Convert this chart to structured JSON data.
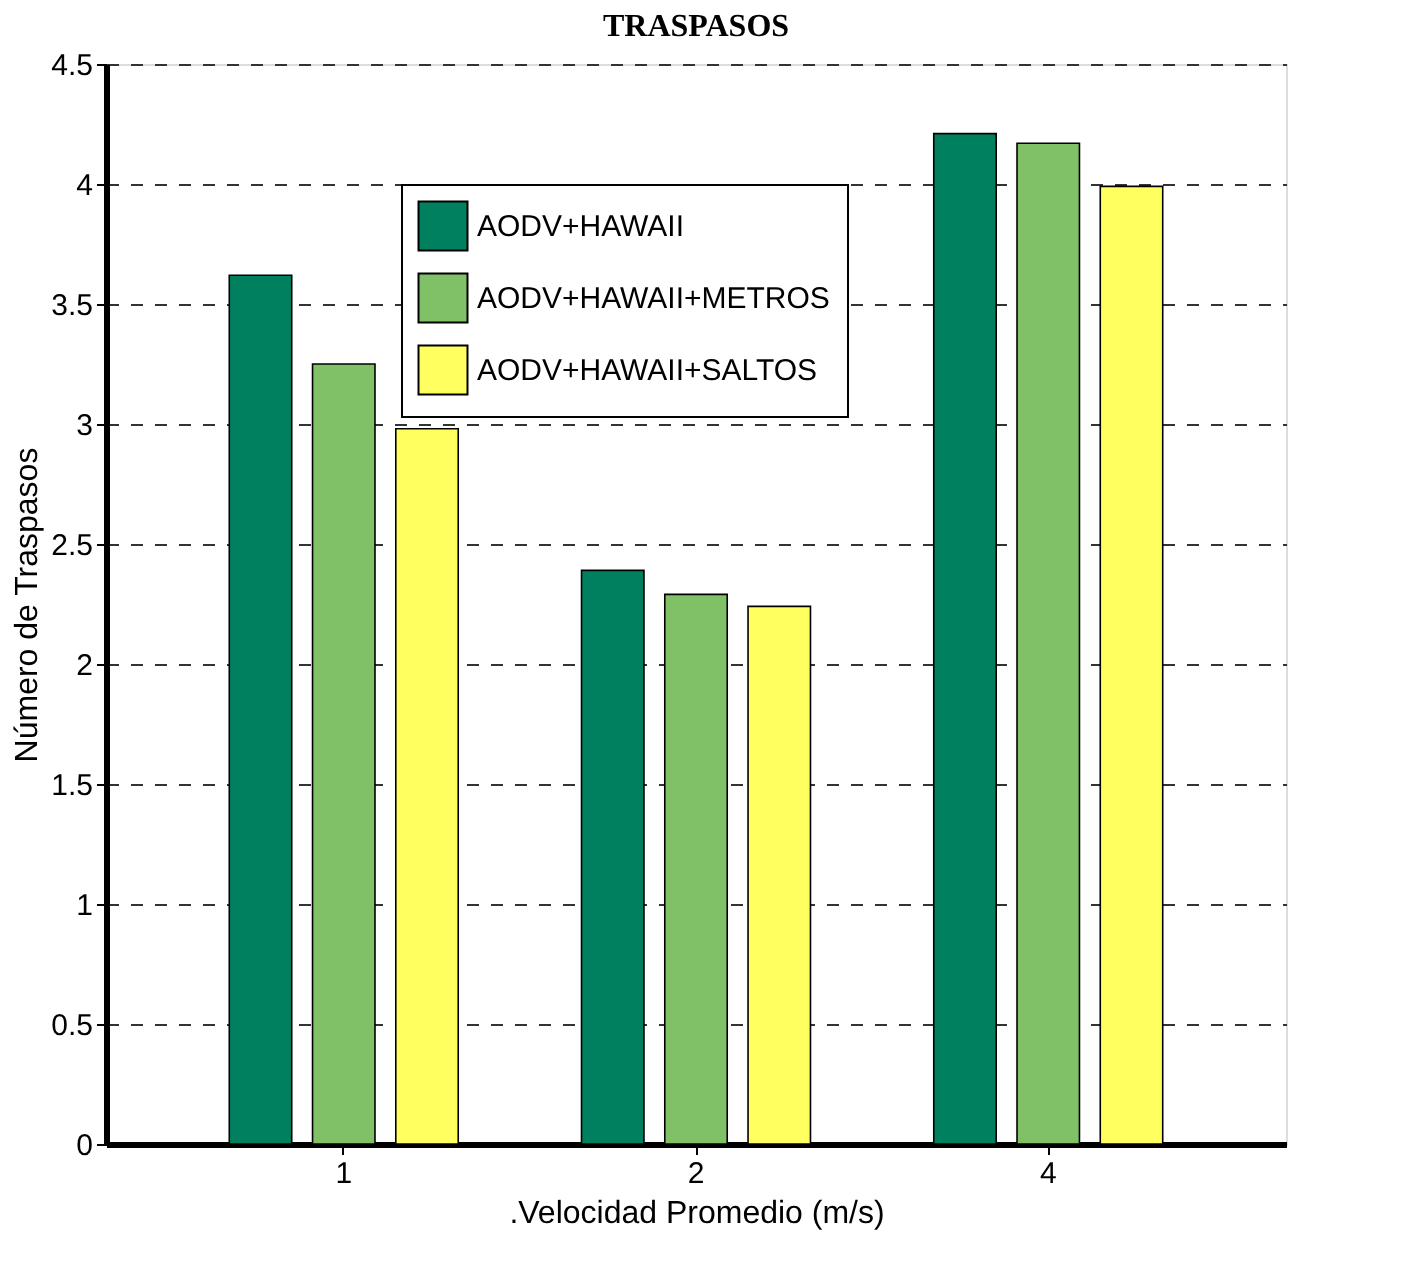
{
  "chart_data": {
    "type": "bar",
    "title": "TRASPASOS",
    "xlabel": ".Velocidad Promedio (m/s)",
    "ylabel": "Número de Traspasos",
    "categories": [
      "1",
      "2",
      "4"
    ],
    "series": [
      {
        "name": "AODV+HAWAII",
        "color": "#00805f",
        "values": [
          3.62,
          2.39,
          4.21
        ]
      },
      {
        "name": "AODV+HAWAII+METROS",
        "color": "#80c066",
        "values": [
          3.25,
          2.29,
          4.17
        ]
      },
      {
        "name": "AODV+HAWAII+SALTOS",
        "color": "#ffff60",
        "values": [
          2.98,
          2.24,
          3.99
        ]
      }
    ],
    "ylim": [
      0,
      4.5
    ],
    "yticks": [
      0,
      0.5,
      1,
      1.5,
      2,
      2.5,
      3,
      3.5,
      4,
      4.5
    ],
    "grid": "y",
    "legend": "top"
  }
}
